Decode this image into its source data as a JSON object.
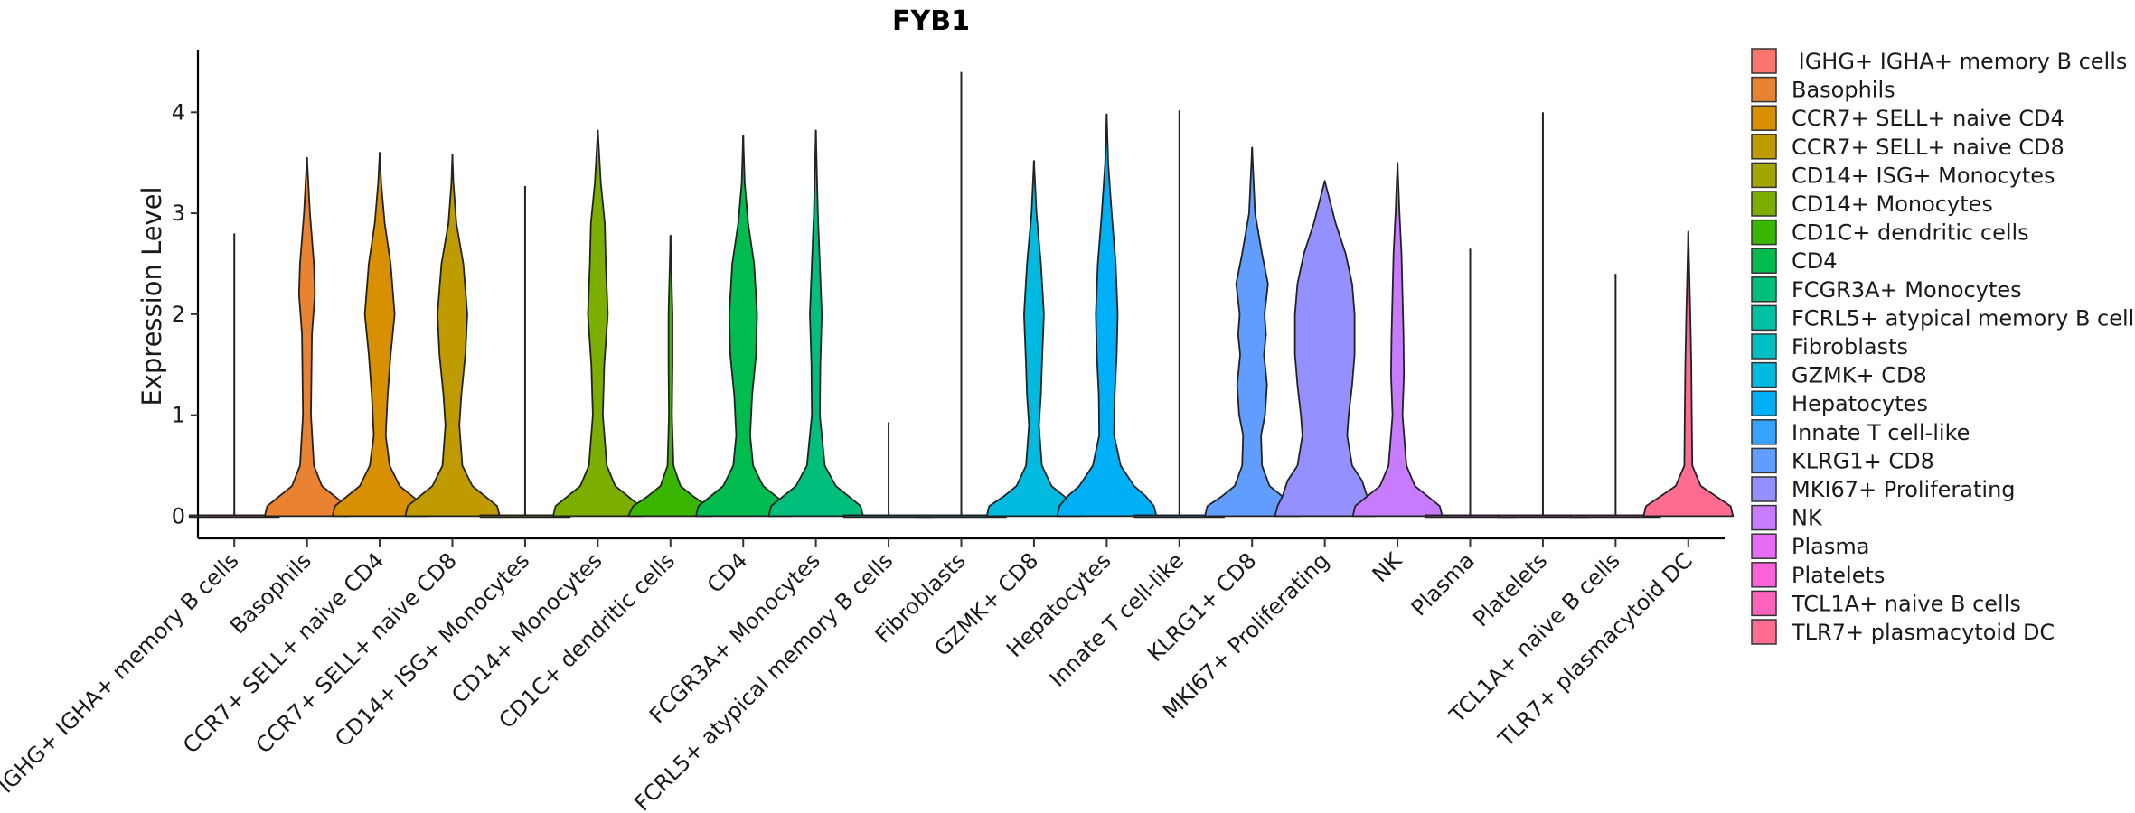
{
  "chart_data": {
    "type": "violin",
    "title": "FYB1",
    "xlabel": "",
    "ylabel": "Expression Level",
    "ylim": [
      -0.22,
      4.62
    ],
    "yticks": [
      0,
      1,
      2,
      3,
      4
    ],
    "legend_position": "right",
    "categories": [
      {
        "name": "IGHG+ IGHA+ memory B cells",
        "legend": " IGHG+ IGHA+ memory B cells",
        "color": "#F8766D",
        "max": 2.8,
        "shape": []
      },
      {
        "name": "Basophils",
        "legend": "Basophils",
        "color": "#EA8331",
        "max": 3.55,
        "shape": [
          [
            0,
            0.85
          ],
          [
            0.1,
            0.8
          ],
          [
            0.2,
            0.55
          ],
          [
            0.3,
            0.3
          ],
          [
            0.5,
            0.14
          ],
          [
            1.0,
            0.08
          ],
          [
            1.8,
            0.1
          ],
          [
            2.2,
            0.16
          ],
          [
            2.5,
            0.14
          ],
          [
            3.0,
            0.06
          ],
          [
            3.55,
            0.0
          ]
        ]
      },
      {
        "name": "CCR7+ SELL+ naive CD4",
        "legend": "CCR7+ SELL+ naive CD4",
        "color": "#D89000",
        "max": 3.6,
        "shape": [
          [
            0,
            0.95
          ],
          [
            0.1,
            0.9
          ],
          [
            0.2,
            0.65
          ],
          [
            0.3,
            0.4
          ],
          [
            0.5,
            0.2
          ],
          [
            0.8,
            0.12
          ],
          [
            1.2,
            0.16
          ],
          [
            1.6,
            0.22
          ],
          [
            2.0,
            0.3
          ],
          [
            2.5,
            0.22
          ],
          [
            2.9,
            0.1
          ],
          [
            3.3,
            0.03
          ],
          [
            3.6,
            0.0
          ]
        ]
      },
      {
        "name": "CCR7+ SELL+ naive CD8",
        "legend": "CCR7+ SELL+ naive CD8",
        "color": "#C09B00",
        "max": 3.58,
        "shape": [
          [
            0,
            0.95
          ],
          [
            0.1,
            0.9
          ],
          [
            0.2,
            0.65
          ],
          [
            0.3,
            0.4
          ],
          [
            0.5,
            0.2
          ],
          [
            0.9,
            0.14
          ],
          [
            1.2,
            0.18
          ],
          [
            1.6,
            0.26
          ],
          [
            2.0,
            0.3
          ],
          [
            2.5,
            0.22
          ],
          [
            2.9,
            0.08
          ],
          [
            3.3,
            0.02
          ],
          [
            3.58,
            0.0
          ]
        ]
      },
      {
        "name": "CD14+ ISG+ Monocytes",
        "legend": "CD14+ ISG+ Monocytes",
        "color": "#A3A500",
        "max": 3.27,
        "shape": []
      },
      {
        "name": "CD14+ Monocytes",
        "legend": "CD14+ Monocytes",
        "color": "#7CAE00",
        "max": 3.82,
        "shape": [
          [
            0,
            0.9
          ],
          [
            0.1,
            0.85
          ],
          [
            0.2,
            0.6
          ],
          [
            0.3,
            0.35
          ],
          [
            0.5,
            0.18
          ],
          [
            1.0,
            0.1
          ],
          [
            1.5,
            0.13
          ],
          [
            2.0,
            0.2
          ],
          [
            2.5,
            0.16
          ],
          [
            2.9,
            0.14
          ],
          [
            3.3,
            0.06
          ],
          [
            3.82,
            0.0
          ]
        ]
      },
      {
        "name": "CD1C+ dendritic cells",
        "legend": "CD1C+ dendritic cells",
        "color": "#39B600",
        "max": 2.78,
        "shape": [
          [
            0,
            0.85
          ],
          [
            0.1,
            0.75
          ],
          [
            0.2,
            0.45
          ],
          [
            0.3,
            0.2
          ],
          [
            0.5,
            0.06
          ],
          [
            1.0,
            0.03
          ],
          [
            1.5,
            0.04
          ],
          [
            2.0,
            0.04
          ],
          [
            2.78,
            0.0
          ]
        ]
      },
      {
        "name": "CD4",
        "legend": "CD4",
        "color": "#00BB4E",
        "max": 3.77,
        "shape": [
          [
            0,
            0.95
          ],
          [
            0.1,
            0.9
          ],
          [
            0.2,
            0.65
          ],
          [
            0.3,
            0.4
          ],
          [
            0.5,
            0.2
          ],
          [
            0.8,
            0.14
          ],
          [
            1.2,
            0.18
          ],
          [
            1.6,
            0.26
          ],
          [
            2.0,
            0.28
          ],
          [
            2.5,
            0.22
          ],
          [
            2.9,
            0.1
          ],
          [
            3.3,
            0.03
          ],
          [
            3.77,
            0.0
          ]
        ]
      },
      {
        "name": "FCGR3A+ Monocytes",
        "legend": "FCGR3A+ Monocytes",
        "color": "#00BF7D",
        "max": 3.82,
        "shape": [
          [
            0,
            0.95
          ],
          [
            0.1,
            0.9
          ],
          [
            0.2,
            0.65
          ],
          [
            0.3,
            0.4
          ],
          [
            0.5,
            0.18
          ],
          [
            1.0,
            0.08
          ],
          [
            1.5,
            0.09
          ],
          [
            2.0,
            0.12
          ],
          [
            2.5,
            0.08
          ],
          [
            3.0,
            0.04
          ],
          [
            3.82,
            0.0
          ]
        ]
      },
      {
        "name": "FCRL5+ atypical memory B cells",
        "legend": "FCRL5+ atypical memory B cells",
        "color": "#00C1A3",
        "max": 0.93,
        "shape": []
      },
      {
        "name": "Fibroblasts",
        "legend": "Fibroblasts",
        "color": "#00BFC4",
        "max": 4.4,
        "shape": []
      },
      {
        "name": "GZMK+ CD8",
        "legend": "GZMK+ CD8",
        "color": "#00BAE0",
        "max": 3.52,
        "shape": [
          [
            0,
            0.95
          ],
          [
            0.1,
            0.9
          ],
          [
            0.2,
            0.6
          ],
          [
            0.3,
            0.35
          ],
          [
            0.5,
            0.16
          ],
          [
            0.9,
            0.1
          ],
          [
            1.2,
            0.14
          ],
          [
            1.5,
            0.16
          ],
          [
            2.0,
            0.2
          ],
          [
            2.5,
            0.14
          ],
          [
            3.0,
            0.05
          ],
          [
            3.52,
            0.0
          ]
        ]
      },
      {
        "name": "Hepatocytes",
        "legend": "Hepatocytes",
        "color": "#00B0F6",
        "max": 3.98,
        "shape": [
          [
            0,
            1.0
          ],
          [
            0.1,
            0.95
          ],
          [
            0.2,
            0.78
          ],
          [
            0.3,
            0.55
          ],
          [
            0.5,
            0.28
          ],
          [
            0.8,
            0.15
          ],
          [
            1.2,
            0.16
          ],
          [
            1.6,
            0.2
          ],
          [
            2.0,
            0.22
          ],
          [
            2.5,
            0.18
          ],
          [
            3.0,
            0.1
          ],
          [
            3.5,
            0.03
          ],
          [
            3.98,
            0.0
          ]
        ]
      },
      {
        "name": "Innate T cell-like",
        "legend": "Innate T cell-like",
        "color": "#35A2FF",
        "max": 4.02,
        "shape": []
      },
      {
        "name": "KLRG1+ CD8",
        "legend": "KLRG1+ CD8",
        "color": "#619CFF",
        "max": 3.65,
        "shape": [
          [
            0,
            0.95
          ],
          [
            0.1,
            0.9
          ],
          [
            0.2,
            0.6
          ],
          [
            0.3,
            0.35
          ],
          [
            0.5,
            0.2
          ],
          [
            0.8,
            0.18
          ],
          [
            1.0,
            0.26
          ],
          [
            1.3,
            0.3
          ],
          [
            1.6,
            0.24
          ],
          [
            1.8,
            0.28
          ],
          [
            2.0,
            0.25
          ],
          [
            2.3,
            0.32
          ],
          [
            2.6,
            0.2
          ],
          [
            3.0,
            0.06
          ],
          [
            3.65,
            0.0
          ]
        ]
      },
      {
        "name": "MKI67+ Proliferating",
        "legend": "MKI67+ Proliferating",
        "color": "#9590FF",
        "max": 3.32,
        "shape": [
          [
            0,
            1.0
          ],
          [
            0.1,
            0.95
          ],
          [
            0.2,
            0.85
          ],
          [
            0.35,
            0.75
          ],
          [
            0.5,
            0.55
          ],
          [
            0.8,
            0.45
          ],
          [
            1.0,
            0.48
          ],
          [
            1.3,
            0.55
          ],
          [
            1.6,
            0.6
          ],
          [
            2.0,
            0.6
          ],
          [
            2.3,
            0.55
          ],
          [
            2.6,
            0.42
          ],
          [
            2.9,
            0.22
          ],
          [
            3.32,
            0.0
          ]
        ]
      },
      {
        "name": "NK",
        "legend": "NK",
        "color": "#C77CFF",
        "max": 3.5,
        "shape": [
          [
            0,
            0.9
          ],
          [
            0.1,
            0.85
          ],
          [
            0.2,
            0.6
          ],
          [
            0.3,
            0.35
          ],
          [
            0.5,
            0.18
          ],
          [
            1.0,
            0.1
          ],
          [
            1.4,
            0.13
          ],
          [
            1.8,
            0.12
          ],
          [
            2.2,
            0.1
          ],
          [
            2.6,
            0.08
          ],
          [
            3.0,
            0.04
          ],
          [
            3.5,
            0.0
          ]
        ]
      },
      {
        "name": "Plasma",
        "legend": "Plasma",
        "color": "#E76BF3",
        "max": 2.65,
        "shape": []
      },
      {
        "name": "Platelets",
        "legend": "Platelets",
        "color": "#FA62DB",
        "max": 4.0,
        "shape": []
      },
      {
        "name": "TCL1A+ naive B cells",
        "legend": "TCL1A+ naive B cells",
        "color": "#FF62BC",
        "max": 2.4,
        "shape": []
      },
      {
        "name": "TLR7+ plasmacytoid DC",
        "legend": "TLR7+ plasmacytoid DC",
        "color": "#FF6C91",
        "max": 2.82,
        "shape": [
          [
            0,
            0.9
          ],
          [
            0.1,
            0.85
          ],
          [
            0.2,
            0.55
          ],
          [
            0.3,
            0.25
          ],
          [
            0.5,
            0.08
          ],
          [
            1.0,
            0.07
          ],
          [
            1.5,
            0.06
          ],
          [
            2.0,
            0.04
          ],
          [
            2.82,
            0.0
          ]
        ]
      }
    ]
  }
}
